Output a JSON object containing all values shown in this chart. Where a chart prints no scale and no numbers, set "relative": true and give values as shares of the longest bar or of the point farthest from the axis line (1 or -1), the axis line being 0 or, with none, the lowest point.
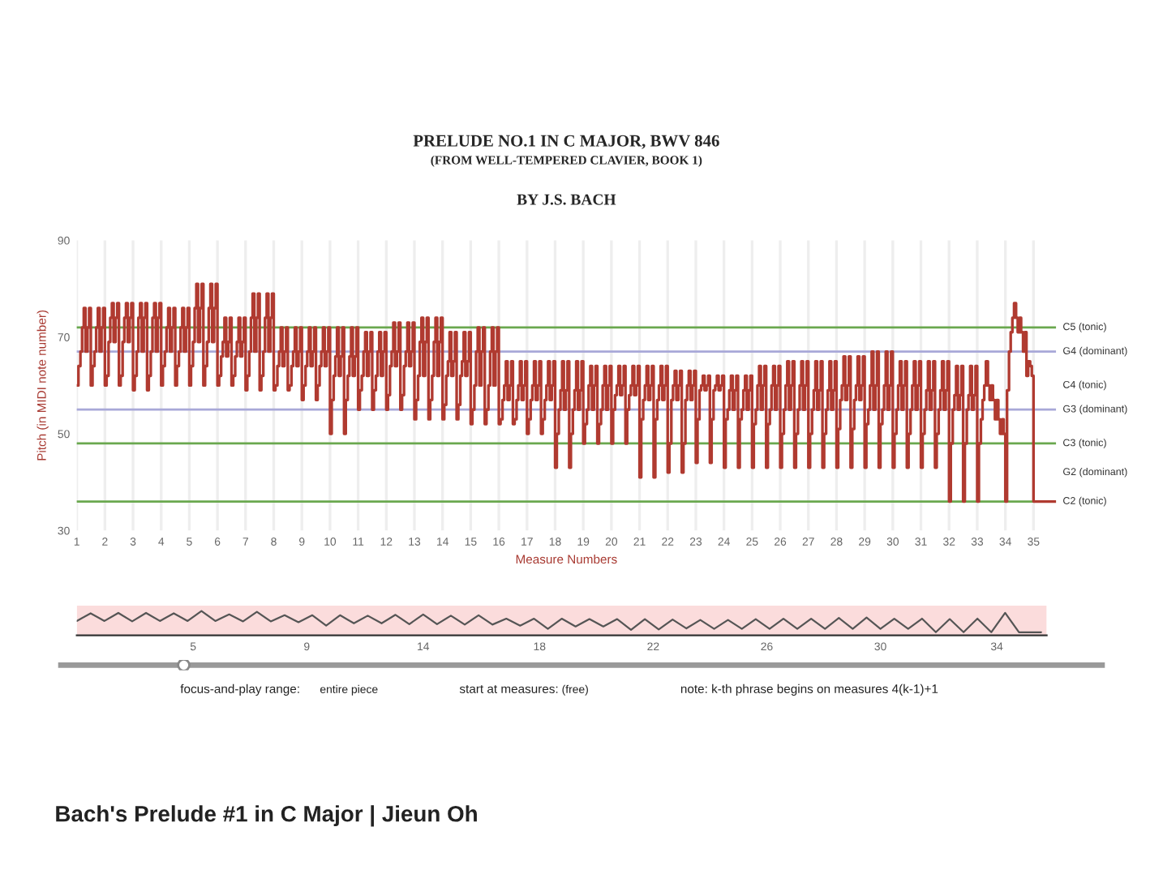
{
  "chart_data": [
    {
      "type": "step",
      "title": "PRELUDE NO.1 IN C MAJOR, BWV 846",
      "subtitle": "(FROM WELL-TEMPERED CLAVIER, BOOK 1)",
      "xlabel": "Measure Numbers",
      "ylabel": "Pitch (in MIDI note number)",
      "annotations": [
        "BY J.S. BACH",
        "C4 (tonic)",
        "G2 (dominant)"
      ],
      "x": [
        1,
        1.06,
        1.13,
        1.19,
        1.25,
        1.31,
        1.38,
        1.44,
        1.5,
        1.56,
        1.63,
        1.69,
        1.75,
        1.81,
        1.88,
        1.94,
        2,
        2.06,
        2.13,
        2.19,
        2.25,
        2.31,
        2.38,
        2.44,
        2.5,
        2.56,
        2.63,
        2.69,
        2.75,
        2.81,
        2.88,
        2.94,
        3,
        3.06,
        3.13,
        3.19,
        3.25,
        3.31,
        3.38,
        3.44,
        3.5,
        3.56,
        3.63,
        3.69,
        3.75,
        3.81,
        3.88,
        3.94,
        4,
        4.06,
        4.13,
        4.19,
        4.25,
        4.31,
        4.38,
        4.44,
        4.5,
        4.56,
        4.63,
        4.69,
        4.75,
        4.81,
        4.88,
        4.94,
        5,
        5.06,
        5.13,
        5.19,
        5.25,
        5.31,
        5.38,
        5.44,
        5.5,
        5.56,
        5.63,
        5.69,
        5.75,
        5.81,
        5.88,
        5.94,
        6,
        6.06,
        6.13,
        6.19,
        6.25,
        6.31,
        6.38,
        6.44,
        6.5,
        6.56,
        6.63,
        6.69,
        6.75,
        6.81,
        6.88,
        6.94,
        7,
        7.06,
        7.13,
        7.19,
        7.25,
        7.31,
        7.38,
        7.44,
        7.5,
        7.56,
        7.63,
        7.69,
        7.75,
        7.81,
        7.88,
        7.94,
        8,
        8.06,
        8.13,
        8.19,
        8.25,
        8.31,
        8.38,
        8.44,
        8.5,
        8.56,
        8.63,
        8.69,
        8.75,
        8.81,
        8.88,
        8.94,
        9,
        9.06,
        9.13,
        9.19,
        9.25,
        9.31,
        9.38,
        9.44,
        9.5,
        9.56,
        9.63,
        9.69,
        9.75,
        9.81,
        9.88,
        9.94,
        10,
        10.06,
        10.13,
        10.19,
        10.25,
        10.31,
        10.38,
        10.44,
        10.5,
        10.56,
        10.63,
        10.69,
        10.75,
        10.81,
        10.88,
        10.94,
        11,
        11.06,
        11.13,
        11.19,
        11.25,
        11.31,
        11.38,
        11.44,
        11.5,
        11.56,
        11.63,
        11.69,
        11.75,
        11.81,
        11.88,
        11.94,
        12,
        12.06,
        12.13,
        12.19,
        12.25,
        12.31,
        12.38,
        12.44,
        12.5,
        12.56,
        12.63,
        12.69,
        12.75,
        12.81,
        12.88,
        12.94,
        13,
        13.06,
        13.13,
        13.19,
        13.25,
        13.31,
        13.38,
        13.44,
        13.5,
        13.56,
        13.63,
        13.69,
        13.75,
        13.81,
        13.88,
        13.94,
        14,
        14.06,
        14.13,
        14.19,
        14.25,
        14.31,
        14.38,
        14.44,
        14.5,
        14.56,
        14.63,
        14.69,
        14.75,
        14.81,
        14.88,
        14.94,
        15,
        15.06,
        15.13,
        15.19,
        15.25,
        15.31,
        15.38,
        15.44,
        15.5,
        15.56,
        15.63,
        15.69,
        15.75,
        15.81,
        15.88,
        15.94,
        16,
        16.06,
        16.13,
        16.19,
        16.25,
        16.31,
        16.38,
        16.44,
        16.5,
        16.56,
        16.63,
        16.69,
        16.75,
        16.81,
        16.88,
        16.94,
        17,
        17.06,
        17.13,
        17.19,
        17.25,
        17.31,
        17.38,
        17.44,
        17.5,
        17.56,
        17.63,
        17.69,
        17.75,
        17.81,
        17.88,
        17.94,
        18,
        18.06,
        18.13,
        18.19,
        18.25,
        18.31,
        18.38,
        18.44,
        18.5,
        18.56,
        18.63,
        18.69,
        18.75,
        18.81,
        18.88,
        18.94,
        19,
        19.06,
        19.13,
        19.19,
        19.25,
        19.31,
        19.38,
        19.44,
        19.5,
        19.56,
        19.63,
        19.69,
        19.75,
        19.81,
        19.88,
        19.94,
        20,
        20.06,
        20.13,
        20.19,
        20.25,
        20.31,
        20.38,
        20.44,
        20.5,
        20.56,
        20.63,
        20.69,
        20.75,
        20.81,
        20.88,
        20.94,
        21,
        21.06,
        21.13,
        21.19,
        21.25,
        21.31,
        21.38,
        21.44,
        21.5,
        21.56,
        21.63,
        21.69,
        21.75,
        21.81,
        21.88,
        21.94,
        22,
        22.06,
        22.13,
        22.19,
        22.25,
        22.31,
        22.38,
        22.44,
        22.5,
        22.56,
        22.63,
        22.69,
        22.75,
        22.81,
        22.88,
        22.94,
        23,
        23.06,
        23.13,
        23.19,
        23.25,
        23.31,
        23.38,
        23.44,
        23.5,
        23.56,
        23.63,
        23.69,
        23.75,
        23.81,
        23.88,
        23.94,
        24,
        24.06,
        24.13,
        24.19,
        24.25,
        24.31,
        24.38,
        24.44,
        24.5,
        24.56,
        24.63,
        24.69,
        24.75,
        24.81,
        24.88,
        24.94,
        25,
        25.06,
        25.13,
        25.19,
        25.25,
        25.31,
        25.38,
        25.44,
        25.5,
        25.56,
        25.63,
        25.69,
        25.75,
        25.81,
        25.88,
        25.94,
        26,
        26.06,
        26.13,
        26.19,
        26.25,
        26.31,
        26.38,
        26.44,
        26.5,
        26.56,
        26.63,
        26.69,
        26.75,
        26.81,
        26.88,
        26.94,
        27,
        27.06,
        27.13,
        27.19,
        27.25,
        27.31,
        27.38,
        27.44,
        27.5,
        27.56,
        27.63,
        27.69,
        27.75,
        27.81,
        27.88,
        27.94,
        28,
        28.06,
        28.13,
        28.19,
        28.25,
        28.31,
        28.38,
        28.44,
        28.5,
        28.56,
        28.63,
        28.69,
        28.75,
        28.81,
        28.88,
        28.94,
        29,
        29.06,
        29.13,
        29.19,
        29.25,
        29.31,
        29.38,
        29.44,
        29.5,
        29.56,
        29.63,
        29.69,
        29.75,
        29.81,
        29.88,
        29.94,
        30,
        30.06,
        30.13,
        30.19,
        30.25,
        30.31,
        30.38,
        30.44,
        30.5,
        30.56,
        30.63,
        30.69,
        30.75,
        30.81,
        30.88,
        30.94,
        31,
        31.06,
        31.13,
        31.19,
        31.25,
        31.31,
        31.38,
        31.44,
        31.5,
        31.56,
        31.63,
        31.69,
        31.75,
        31.81,
        31.88,
        31.94,
        32,
        32.06,
        32.13,
        32.19,
        32.25,
        32.31,
        32.38,
        32.44,
        32.5,
        32.56,
        32.63,
        32.69,
        32.75,
        32.81,
        32.88,
        32.94,
        33,
        33.06,
        33.13,
        33.19,
        33.25,
        33.31,
        33.38,
        33.44,
        33.5,
        33.56,
        33.63,
        33.69,
        33.75,
        33.81,
        33.88,
        33.94,
        34,
        34.06,
        34.13,
        34.19,
        34.25,
        34.31,
        34.38,
        34.44,
        34.5,
        34.56,
        34.63,
        34.69,
        34.75,
        34.81,
        34.88,
        34.94,
        35,
        35.8
      ],
      "series": [
        {
          "color": "#b03a30",
          "values": [
            60,
            64,
            67,
            72,
            76,
            67,
            72,
            76,
            60,
            64,
            67,
            72,
            76,
            67,
            72,
            76,
            60,
            62,
            69,
            74,
            77,
            69,
            74,
            77,
            60,
            62,
            69,
            74,
            77,
            69,
            74,
            77,
            59,
            62,
            67,
            74,
            77,
            67,
            74,
            77,
            59,
            62,
            67,
            74,
            77,
            67,
            74,
            77,
            60,
            64,
            67,
            72,
            76,
            67,
            72,
            76,
            60,
            64,
            67,
            72,
            76,
            67,
            72,
            76,
            60,
            64,
            69,
            76,
            81,
            69,
            76,
            81,
            60,
            64,
            69,
            76,
            81,
            69,
            76,
            81,
            60,
            62,
            66,
            69,
            74,
            66,
            69,
            74,
            60,
            62,
            66,
            69,
            74,
            66,
            69,
            74,
            59,
            62,
            67,
            74,
            79,
            67,
            74,
            79,
            59,
            62,
            67,
            74,
            79,
            67,
            74,
            79,
            59,
            60,
            64,
            67,
            72,
            64,
            67,
            72,
            59,
            60,
            64,
            67,
            72,
            64,
            67,
            72,
            57,
            60,
            64,
            67,
            72,
            64,
            67,
            72,
            57,
            60,
            64,
            67,
            72,
            64,
            67,
            72,
            50,
            57,
            62,
            66,
            72,
            62,
            66,
            72,
            50,
            57,
            62,
            66,
            72,
            62,
            66,
            72,
            55,
            59,
            62,
            67,
            71,
            62,
            67,
            71,
            55,
            59,
            62,
            67,
            71,
            62,
            67,
            71,
            55,
            58,
            64,
            67,
            73,
            64,
            67,
            73,
            55,
            58,
            64,
            67,
            73,
            64,
            67,
            73,
            53,
            57,
            62,
            69,
            74,
            62,
            69,
            74,
            53,
            57,
            62,
            69,
            74,
            62,
            69,
            74,
            53,
            56,
            62,
            65,
            71,
            62,
            65,
            71,
            53,
            56,
            62,
            65,
            71,
            62,
            65,
            71,
            52,
            55,
            60,
            67,
            72,
            60,
            67,
            72,
            52,
            55,
            60,
            67,
            72,
            60,
            67,
            72,
            52,
            53,
            57,
            60,
            65,
            57,
            60,
            65,
            52,
            53,
            57,
            60,
            65,
            57,
            60,
            65,
            50,
            53,
            57,
            60,
            65,
            57,
            60,
            65,
            50,
            53,
            57,
            60,
            65,
            57,
            60,
            65,
            43,
            50,
            55,
            59,
            65,
            55,
            59,
            65,
            43,
            50,
            55,
            59,
            65,
            55,
            59,
            65,
            48,
            52,
            55,
            60,
            64,
            55,
            60,
            64,
            48,
            52,
            55,
            60,
            64,
            55,
            60,
            64,
            48,
            55,
            58,
            60,
            64,
            58,
            60,
            64,
            48,
            55,
            58,
            60,
            64,
            58,
            60,
            64,
            41,
            53,
            57,
            60,
            64,
            57,
            60,
            64,
            41,
            53,
            57,
            60,
            64,
            57,
            60,
            64,
            42,
            48,
            57,
            60,
            63,
            57,
            60,
            63,
            42,
            48,
            57,
            60,
            63,
            57,
            60,
            63,
            44,
            53,
            59,
            60,
            62,
            59,
            60,
            62,
            44,
            53,
            59,
            60,
            62,
            59,
            60,
            62,
            43,
            53,
            55,
            59,
            62,
            55,
            59,
            62,
            43,
            53,
            55,
            59,
            62,
            55,
            59,
            62,
            43,
            52,
            55,
            60,
            64,
            55,
            60,
            64,
            43,
            52,
            55,
            60,
            64,
            55,
            60,
            64,
            43,
            50,
            55,
            60,
            65,
            55,
            60,
            65,
            43,
            50,
            55,
            60,
            65,
            55,
            60,
            65,
            43,
            50,
            55,
            59,
            65,
            55,
            59,
            65,
            43,
            50,
            55,
            59,
            65,
            55,
            59,
            65,
            43,
            51,
            57,
            60,
            66,
            57,
            60,
            66,
            43,
            51,
            57,
            60,
            66,
            57,
            60,
            66,
            43,
            52,
            55,
            60,
            67,
            55,
            60,
            67,
            43,
            52,
            55,
            60,
            67,
            55,
            60,
            67,
            43,
            50,
            55,
            60,
            65,
            55,
            60,
            65,
            43,
            50,
            55,
            60,
            65,
            55,
            60,
            65,
            43,
            50,
            55,
            59,
            65,
            55,
            59,
            65,
            43,
            50,
            55,
            59,
            65,
            55,
            59,
            65,
            36,
            48,
            55,
            58,
            64,
            55,
            58,
            64,
            36,
            48,
            55,
            58,
            64,
            55,
            58,
            64,
            36,
            48,
            53,
            57,
            60,
            65,
            60,
            57,
            60,
            57,
            53,
            57,
            53,
            50,
            53,
            50,
            36,
            59,
            67,
            71,
            74,
            77,
            74,
            71,
            74,
            71,
            67,
            71,
            62,
            65,
            64,
            62,
            36,
            36
          ]
        }
      ],
      "xlim": [
        1,
        35.8
      ],
      "xticks": [
        1,
        2,
        3,
        4,
        5,
        6,
        7,
        8,
        9,
        10,
        11,
        12,
        13,
        14,
        15,
        16,
        17,
        18,
        19,
        20,
        21,
        22,
        23,
        24,
        25,
        26,
        27,
        28,
        29,
        30,
        31,
        32,
        33,
        34,
        35
      ],
      "ylim": [
        30,
        90
      ],
      "yticks": [
        30,
        50,
        70,
        90
      ],
      "grid": "x",
      "ref_lines": [
        {
          "axis": "y",
          "value": 72,
          "label": "C5 (tonic)",
          "color": "#6aa84f"
        },
        {
          "axis": "y",
          "value": 67,
          "label": "G4 (dominant)",
          "color": "#a8a8d8"
        },
        {
          "axis": "y",
          "value": 55,
          "label": "G3 (dominant)",
          "color": "#a8a8d8"
        },
        {
          "axis": "y",
          "value": 48,
          "label": "C3 (tonic)",
          "color": "#6aa84f"
        },
        {
          "axis": "y",
          "value": 36,
          "label": "C2 (tonic)",
          "color": "#6aa84f"
        }
      ]
    },
    {
      "type": "line",
      "relative": true,
      "x": [
        1,
        1.5,
        2,
        2.5,
        3,
        3.5,
        4,
        4.5,
        5,
        5.5,
        6,
        6.5,
        7,
        7.5,
        8,
        8.5,
        9,
        9.5,
        10,
        10.5,
        11,
        11.5,
        12,
        12.5,
        13,
        13.5,
        14,
        14.5,
        15,
        15.5,
        16,
        16.5,
        17,
        17.5,
        18,
        18.5,
        19,
        19.5,
        20,
        20.5,
        21,
        21.5,
        22,
        22.5,
        23,
        23.5,
        24,
        24.5,
        25,
        25.5,
        26,
        26.5,
        27,
        27.5,
        28,
        28.5,
        29,
        29.5,
        30,
        30.5,
        31,
        31.5,
        32,
        32.5,
        33,
        33.5,
        34,
        34.5,
        35,
        35.8
      ],
      "series": [
        {
          "color": "#555555",
          "values": [
            0.53,
            0.89,
            0.53,
            0.91,
            0.51,
            0.91,
            0.53,
            0.89,
            0.53,
            1,
            0.53,
            0.84,
            0.51,
            0.96,
            0.51,
            0.8,
            0.47,
            0.8,
            0.31,
            0.8,
            0.42,
            0.78,
            0.42,
            0.82,
            0.38,
            0.84,
            0.38,
            0.78,
            0.36,
            0.8,
            0.36,
            0.64,
            0.31,
            0.64,
            0.16,
            0.64,
            0.27,
            0.62,
            0.27,
            0.62,
            0.11,
            0.62,
            0.13,
            0.6,
            0.18,
            0.58,
            0.16,
            0.58,
            0.16,
            0.62,
            0.16,
            0.64,
            0.16,
            0.64,
            0.16,
            0.67,
            0.16,
            0.69,
            0.16,
            0.64,
            0.16,
            0.64,
            0,
            0.62,
            0,
            0.64,
            0,
            0.91,
            0,
            0
          ]
        }
      ],
      "xlim": [
        1,
        36
      ],
      "xticks": [
        {
          "value": 5.2,
          "label": "5"
        },
        {
          "value": 9.3,
          "label": "9"
        },
        {
          "value": 13.5,
          "label": "14"
        },
        {
          "value": 17.7,
          "label": "18"
        },
        {
          "value": 21.8,
          "label": "22"
        },
        {
          "value": 25.9,
          "label": "26"
        },
        30,
        {
          "value": 34.2,
          "label": "34"
        }
      ],
      "bands": [
        {
          "axis": "x",
          "from": 1,
          "to": 36,
          "color": "#fbdcdc"
        }
      ],
      "annotations": [
        "focus-and-play range:",
        "entire piece",
        "start at measures:",
        "(free)",
        "note: k-th phrase begins on measures 4(k-1)+1",
        "Bach's Prelude #1 in C Major | Jieun Oh"
      ]
    }
  ]
}
